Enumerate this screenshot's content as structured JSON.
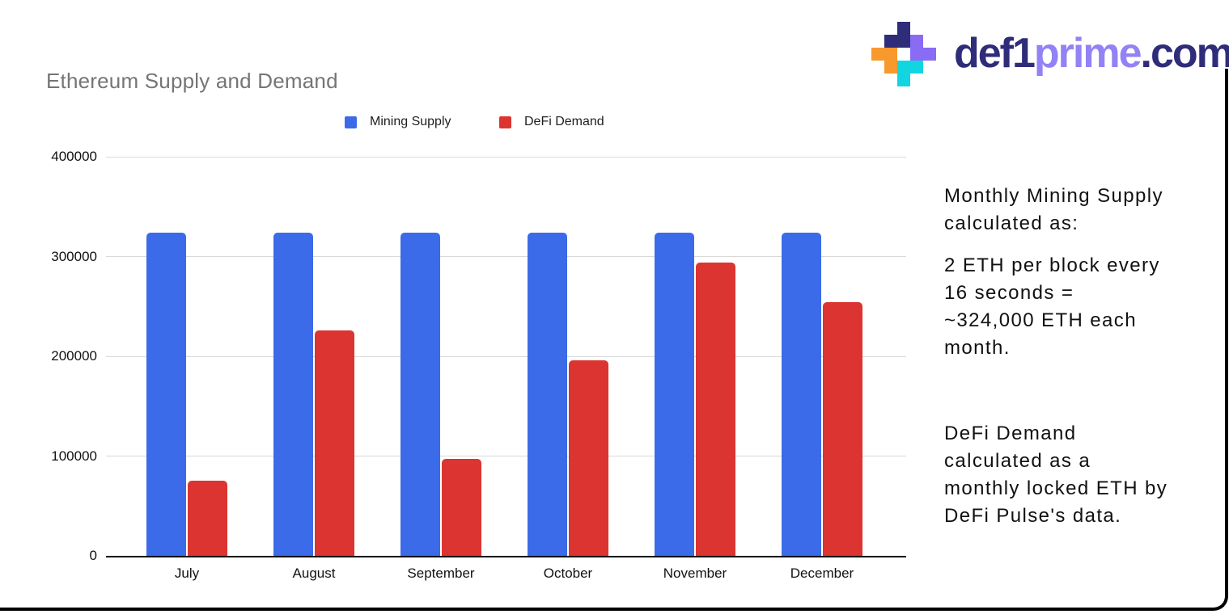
{
  "chart_data": {
    "type": "bar",
    "title": "Ethereum Supply and Demand",
    "categories": [
      "July",
      "August",
      "September",
      "October",
      "November",
      "December"
    ],
    "series": [
      {
        "name": "Mining Supply",
        "color": "#3b6be8",
        "values": [
          324000,
          324000,
          324000,
          324000,
          324000,
          324000
        ]
      },
      {
        "name": "DeFi Demand",
        "color": "#dc3430",
        "values": [
          75000,
          226000,
          97000,
          196000,
          294000,
          254000
        ]
      }
    ],
    "xlabel": "",
    "ylabel": "",
    "ylim": [
      0,
      400000
    ],
    "yticks": [
      0,
      100000,
      200000,
      300000,
      400000
    ],
    "grid": true,
    "legend_position": "top",
    "colors": {
      "gridline": "#d9d9d9",
      "axis": "#000000",
      "title": "#757575",
      "tick_label": "#111111"
    }
  },
  "annotations": {
    "mining_heading": "Monthly Mining Supply\ncalculated as:",
    "mining_detail": "2 ETH per block every\n16 seconds =\n~324,000 ETH each\nmonth.",
    "defi_detail": "DeFi Demand\ncalculated as a\nmonthly locked ETH by\nDeFi Pulse's data."
  },
  "logo": {
    "segments": [
      {
        "text": "def1",
        "color": "#2f2c79"
      },
      {
        "text": "prime",
        "color": "#9282f5"
      },
      {
        "text": ".com",
        "color": "#2f2c79"
      }
    ],
    "icon_colors": {
      "navy": "#2f2c79",
      "purple": "#8a6cf4",
      "cyan": "#12d5e2",
      "orange": "#f8992d"
    }
  }
}
